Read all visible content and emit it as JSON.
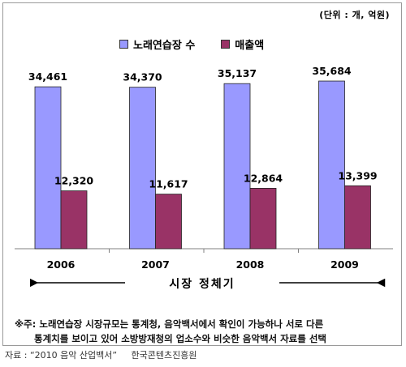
{
  "unit_label": "(단위 : 개, 억원)",
  "chart_data": {
    "type": "bar",
    "categories": [
      "2006",
      "2007",
      "2008",
      "2009"
    ],
    "series": [
      {
        "name": "노래연습장 수",
        "color": "#9999ff",
        "values": [
          34461,
          34370,
          35137,
          35684
        ],
        "labels": [
          "34,461",
          "34,370",
          "35,137",
          "35,684"
        ]
      },
      {
        "name": "매출액",
        "color": "#993366",
        "values": [
          12320,
          11617,
          12864,
          13399
        ],
        "labels": [
          "12,320",
          "11,617",
          "12,864",
          "13,399"
        ]
      }
    ],
    "ylim": [
      0,
      40000
    ],
    "grid": false,
    "legend_position": "top"
  },
  "trend_label": "시장 정체기",
  "note": {
    "line1": "※주: 노래연습장 시장규모는 통계청, 음악백서에서 확인이 가능하나 서로 다른",
    "line2": "통계치를 보이고 있어 소방방재청의 업소수와 비슷한 음악백서 자료를 선택"
  },
  "source": {
    "label": "자료 : “2010 음악 산업백서”",
    "org": "한국콘텐츠진흥원"
  }
}
